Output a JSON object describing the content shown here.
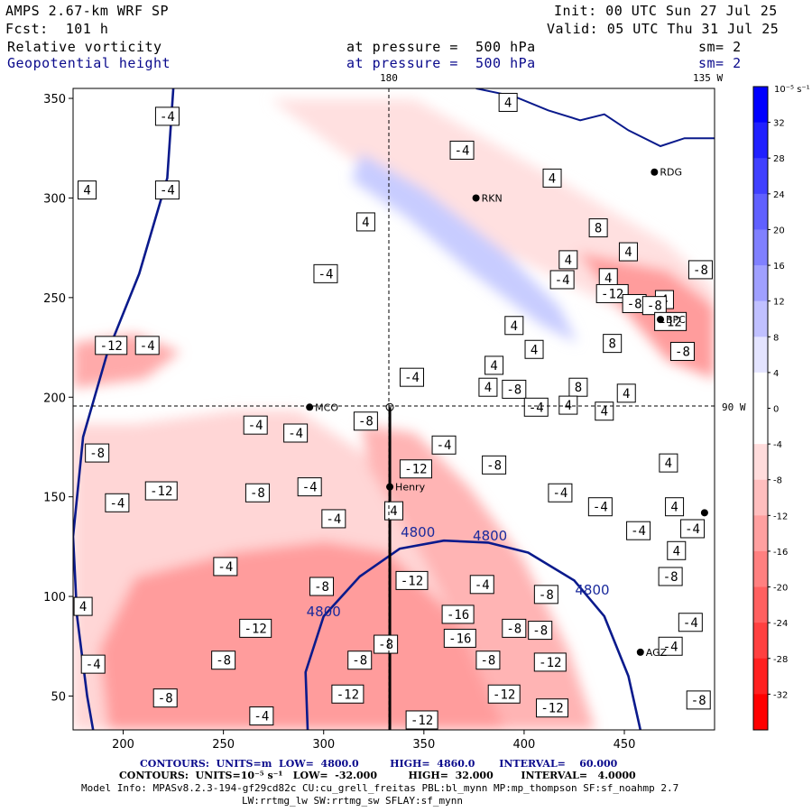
{
  "header": {
    "model_title": "AMPS 2.67-km WRF SP",
    "init_line": "Init: 00 UTC Sun 27 Jul 25",
    "forecast": "Fcst:  101 h",
    "valid_line": "Valid: 05 UTC Thu 31 Jul 25",
    "field1_name": "Relative vorticity",
    "field1_level": "at pressure =  500 hPa",
    "field1_smooth": "sm= 2",
    "field2_name": "Geopotential height",
    "field2_level": "at pressure =  500 hPa",
    "field2_smooth": "sm= 2"
  },
  "footer": {
    "contours_height": "CONTOURS:  UNITS=m  LOW=  4800.0         HIGH=  4860.0       INTERVAL=    60.000",
    "contours_vort": "CONTOURS:  UNITS=10⁻⁵ s⁻¹   LOW=  -32.000         HIGH=  32.000        INTERVAL=   4.0000",
    "model_info_1": "Model Info: MPASv8.2.3-194-gf29cd82c CU:cu_grell_freitas PBL:bl_mynn MP:mp_thompson SF:sf_noahmp 2.7",
    "model_info_2": "LW:rrtmg_lw SW:rrtmg_sw SFLAY:sf_mynn"
  },
  "chart_data": {
    "type": "heatmap",
    "xlim": [
      175,
      495
    ],
    "ylim": [
      33,
      355
    ],
    "x_ticks": [
      200,
      250,
      300,
      350,
      400,
      450
    ],
    "y_ticks": [
      50,
      100,
      150,
      200,
      250,
      300,
      350
    ],
    "grid_lines": {
      "x": 333,
      "x_label": "180",
      "y": 195,
      "y_label": "90 W"
    },
    "corner_label": "135 W",
    "colorbar": {
      "unit_label": "10⁻⁵ s⁻¹",
      "tick_values": [
        32,
        28,
        24,
        20,
        16,
        12,
        8,
        4,
        0,
        -4,
        -8,
        -12,
        -16,
        -20,
        -24,
        -28,
        -32
      ],
      "colors": [
        "#0000ff",
        "#2020ff",
        "#4040ff",
        "#6060ff",
        "#8080ff",
        "#a0a0ff",
        "#c0c0ff",
        "#e4e4ff",
        "#ffffff",
        "#ffffff",
        "#ffdcdc",
        "#ffbebe",
        "#ffa0a0",
        "#ff8080",
        "#ff6060",
        "#ff4040",
        "#ff2020",
        "#ff0000"
      ]
    },
    "height_contours": [
      {
        "label": "4800",
        "points": [
          [
            225,
            355
          ],
          [
            222,
            310
          ],
          [
            208,
            262
          ],
          [
            192,
            222
          ],
          [
            180,
            180
          ],
          [
            175,
            130
          ],
          [
            177,
            90
          ],
          [
            182,
            50
          ],
          [
            185,
            33
          ]
        ]
      },
      {
        "label": "4800",
        "points": [
          [
            292,
            33
          ],
          [
            291,
            62
          ],
          [
            300,
            90
          ],
          [
            318,
            110
          ],
          [
            338,
            124
          ],
          [
            360,
            128
          ],
          [
            382,
            127
          ],
          [
            402,
            122
          ],
          [
            425,
            108
          ],
          [
            440,
            90
          ],
          [
            452,
            60
          ],
          [
            458,
            33
          ]
        ]
      }
    ],
    "height_labels": [
      {
        "text": "4800",
        "x": 347,
        "y": 130
      },
      {
        "text": "4800",
        "x": 383,
        "y": 128
      },
      {
        "text": "4800",
        "x": 434,
        "y": 101
      },
      {
        "text": "4800",
        "x": 300,
        "y": 90
      }
    ],
    "coast": [
      [
        376,
        355
      ],
      [
        395,
        351
      ],
      [
        412,
        344
      ],
      [
        428,
        339
      ],
      [
        440,
        342
      ],
      [
        452,
        334
      ],
      [
        468,
        326
      ],
      [
        480,
        330
      ],
      [
        495,
        330
      ]
    ],
    "stations": [
      {
        "name": "Henry",
        "x": 333,
        "y": 155
      },
      {
        "name": "MCO",
        "x": 293,
        "y": 195
      },
      {
        "name": "RDG",
        "x": 465,
        "y": 313
      },
      {
        "name": "RKN",
        "x": 376,
        "y": 300
      },
      {
        "name": "BPC",
        "x": 468,
        "y": 239
      },
      {
        "name": "AGZ",
        "x": 458,
        "y": 72
      },
      {
        "name": "",
        "x": 490,
        "y": 142
      }
    ],
    "transect": {
      "x": 333,
      "y_start": 33,
      "y_end": 195
    },
    "vorticity_box_labels": [
      {
        "text": "-4",
        "x": 222,
        "y": 341
      },
      {
        "text": "4",
        "x": 182,
        "y": 304
      },
      {
        "text": "-4",
        "x": 222,
        "y": 304
      },
      {
        "text": "4",
        "x": 321,
        "y": 288
      },
      {
        "text": "-4",
        "x": 301,
        "y": 262
      },
      {
        "text": "-12",
        "x": 194,
        "y": 226
      },
      {
        "text": "-4",
        "x": 212,
        "y": 226
      },
      {
        "text": "4",
        "x": 392,
        "y": 348
      },
      {
        "text": "-4",
        "x": 369,
        "y": 324
      },
      {
        "text": "4",
        "x": 414,
        "y": 310
      },
      {
        "text": "4",
        "x": 422,
        "y": 269
      },
      {
        "text": "8",
        "x": 437,
        "y": 285
      },
      {
        "text": "4",
        "x": 442,
        "y": 260
      },
      {
        "text": "4",
        "x": 452,
        "y": 273
      },
      {
        "text": "4",
        "x": 470,
        "y": 249
      },
      {
        "text": "-12",
        "x": 444,
        "y": 252
      },
      {
        "text": "-8",
        "x": 455,
        "y": 247
      },
      {
        "text": "-4",
        "x": 419,
        "y": 259
      },
      {
        "text": "8",
        "x": 444,
        "y": 227
      },
      {
        "text": "4",
        "x": 395,
        "y": 236
      },
      {
        "text": "4",
        "x": 405,
        "y": 224
      },
      {
        "text": "-4",
        "x": 344,
        "y": 210
      },
      {
        "text": "4",
        "x": 382,
        "y": 205
      },
      {
        "text": "8",
        "x": 427,
        "y": 205
      },
      {
        "text": "4",
        "x": 440,
        "y": 193
      },
      {
        "text": "4",
        "x": 451,
        "y": 202
      },
      {
        "text": "-8",
        "x": 465,
        "y": 246
      },
      {
        "text": "-12",
        "x": 473,
        "y": 238
      },
      {
        "text": "-8",
        "x": 479,
        "y": 223
      },
      {
        "text": "-8",
        "x": 488,
        "y": 264
      },
      {
        "text": "-8",
        "x": 395,
        "y": 204
      },
      {
        "text": "4",
        "x": 385,
        "y": 216
      },
      {
        "text": "-4",
        "x": 406,
        "y": 195
      },
      {
        "text": "4",
        "x": 422,
        "y": 196
      },
      {
        "text": "-4",
        "x": 286,
        "y": 182
      },
      {
        "text": "-4",
        "x": 266,
        "y": 186
      },
      {
        "text": "-8",
        "x": 321,
        "y": 188
      },
      {
        "text": "-4",
        "x": 360,
        "y": 176
      },
      {
        "text": "-12",
        "x": 346,
        "y": 164
      },
      {
        "text": "-8",
        "x": 385,
        "y": 166
      },
      {
        "text": "-8",
        "x": 267,
        "y": 152
      },
      {
        "text": "-4",
        "x": 293,
        "y": 155
      },
      {
        "text": "-8",
        "x": 187,
        "y": 172
      },
      {
        "text": "-12",
        "x": 219,
        "y": 153
      },
      {
        "text": "-4",
        "x": 197,
        "y": 147
      },
      {
        "text": "-4",
        "x": 305,
        "y": 139
      },
      {
        "text": "4",
        "x": 335,
        "y": 143
      },
      {
        "text": "-4",
        "x": 418,
        "y": 152
      },
      {
        "text": "-4",
        "x": 438,
        "y": 145
      },
      {
        "text": "-4",
        "x": 457,
        "y": 133
      },
      {
        "text": "4",
        "x": 472,
        "y": 167
      },
      {
        "text": "4",
        "x": 475,
        "y": 145
      },
      {
        "text": "4",
        "x": 476,
        "y": 123
      },
      {
        "text": "-4",
        "x": 484,
        "y": 134
      },
      {
        "text": "-4",
        "x": 251,
        "y": 115
      },
      {
        "text": "-8",
        "x": 299,
        "y": 105
      },
      {
        "text": "-12",
        "x": 344,
        "y": 108
      },
      {
        "text": "-4",
        "x": 379,
        "y": 106
      },
      {
        "text": "-16",
        "x": 367,
        "y": 91
      },
      {
        "text": "-8",
        "x": 395,
        "y": 84
      },
      {
        "text": "-8",
        "x": 408,
        "y": 83
      },
      {
        "text": "-16",
        "x": 368,
        "y": 79
      },
      {
        "text": "-8",
        "x": 411,
        "y": 101
      },
      {
        "text": "-8",
        "x": 473,
        "y": 110
      },
      {
        "text": "-4",
        "x": 483,
        "y": 87
      },
      {
        "text": "4",
        "x": 180,
        "y": 95
      },
      {
        "text": "-12",
        "x": 266,
        "y": 84
      },
      {
        "text": "-8",
        "x": 331,
        "y": 76
      },
      {
        "text": "-8",
        "x": 250,
        "y": 68
      },
      {
        "text": "-8",
        "x": 318,
        "y": 68
      },
      {
        "text": "-8",
        "x": 382,
        "y": 68
      },
      {
        "text": "-12",
        "x": 413,
        "y": 67
      },
      {
        "text": "-4",
        "x": 473,
        "y": 75
      },
      {
        "text": "-4",
        "x": 185,
        "y": 66
      },
      {
        "text": "-8",
        "x": 221,
        "y": 49
      },
      {
        "text": "-12",
        "x": 312,
        "y": 51
      },
      {
        "text": "-12",
        "x": 390,
        "y": 51
      },
      {
        "text": "-12",
        "x": 414,
        "y": 44
      },
      {
        "text": "-8",
        "x": 487,
        "y": 48
      },
      {
        "text": "-4",
        "x": 269,
        "y": 40
      },
      {
        "text": "-12",
        "x": 349,
        "y": 38
      }
    ]
  }
}
